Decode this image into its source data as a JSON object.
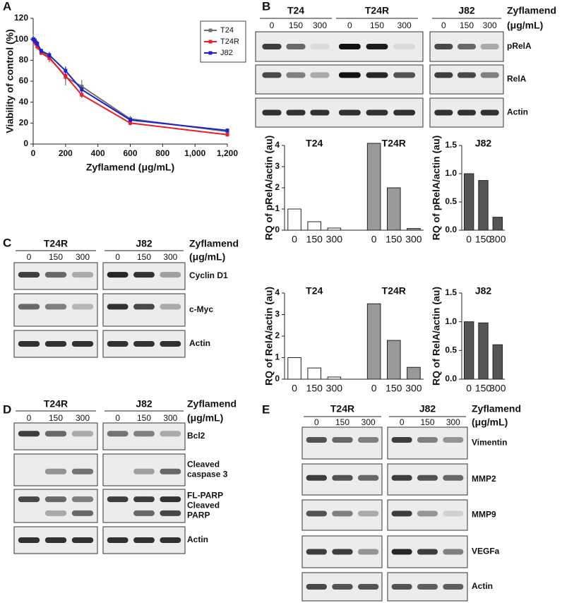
{
  "panel_labels": [
    "A",
    "B",
    "C",
    "D",
    "E"
  ],
  "chart_data": [
    {
      "type": "line",
      "xlabel": "Zyflamend (μg/mL)",
      "ylabel": "Viability of control (%)",
      "x": [
        0,
        10,
        25,
        50,
        100,
        200,
        300,
        600,
        1200
      ],
      "xlim": [
        0,
        1200
      ],
      "xticks": [
        0,
        200,
        400,
        600,
        800,
        {
          "value": 1000,
          "label": "1,000"
        },
        {
          "value": 1200,
          "label": "1,200"
        }
      ],
      "ylim": [
        0,
        120
      ],
      "yticks": [
        0,
        20,
        40,
        60,
        80,
        100,
        120
      ],
      "legend": "upper right",
      "series": [
        {
          "name": "T24",
          "color": "#707070",
          "values": [
            100,
            98,
            95,
            88,
            83,
            64,
            55,
            24,
            12
          ],
          "errors": [
            5,
            4,
            3,
            3,
            3,
            8,
            6,
            3,
            2
          ]
        },
        {
          "name": "T24R",
          "color": "#e8202a",
          "values": [
            100,
            97,
            93,
            87,
            82,
            65,
            47,
            20,
            9
          ],
          "errors": [
            3,
            3,
            3,
            2,
            4,
            4,
            3,
            2,
            2
          ]
        },
        {
          "name": "J82",
          "color": "#2020d0",
          "values": [
            100,
            99,
            96,
            89,
            85,
            70,
            52,
            23,
            13
          ],
          "errors": [
            3,
            3,
            3,
            2,
            3,
            4,
            3,
            2,
            2
          ]
        }
      ]
    },
    {
      "type": "bar",
      "ylabel": "RQ of pRelA/actin (au)",
      "categories": [
        "0",
        "150",
        "300",
        null,
        "0",
        "150",
        "300"
      ],
      "ylim": [
        0,
        4
      ],
      "yticks": [
        0,
        1,
        2,
        3,
        4
      ],
      "series": [
        {
          "name": "T24",
          "color": "#ffffff",
          "values": [
            1.0,
            0.4,
            0.1,
            null,
            null,
            null,
            null
          ]
        },
        {
          "name": "T24R",
          "color": "#999999",
          "values": [
            null,
            null,
            null,
            null,
            4.1,
            2.0,
            0.08
          ]
        }
      ]
    },
    {
      "type": "bar",
      "ylabel": "RQ of pRelA/actin (au)",
      "categories": [
        "0",
        "150",
        "300"
      ],
      "ylim": [
        0,
        1.5
      ],
      "yticks": [
        {
          "value": 0,
          "label": "0.0"
        },
        0.5,
        {
          "value": 1,
          "label": "1.0"
        },
        1.5
      ],
      "series": [
        {
          "name": "J82",
          "color": "#555555",
          "values": [
            1.0,
            0.88,
            0.23
          ]
        }
      ]
    },
    {
      "type": "bar",
      "ylabel": "RQ of RelA/actin (au)",
      "categories": [
        "0",
        "150",
        "300",
        null,
        "0",
        "150",
        "300"
      ],
      "ylim": [
        0,
        4
      ],
      "yticks": [
        0,
        1,
        2,
        3,
        4
      ],
      "series": [
        {
          "name": "T24",
          "color": "#ffffff",
          "values": [
            1.0,
            0.52,
            0.1,
            null,
            null,
            null,
            null
          ]
        },
        {
          "name": "T24R",
          "color": "#999999",
          "values": [
            null,
            null,
            null,
            null,
            3.5,
            1.8,
            0.55
          ]
        }
      ]
    },
    {
      "type": "bar",
      "ylabel": "RQ of RelA/actin (au)",
      "categories": [
        "0",
        "150",
        "300"
      ],
      "ylim": [
        0,
        1.5
      ],
      "yticks": [
        {
          "value": 0,
          "label": "0.0"
        },
        0.5,
        {
          "value": 1,
          "label": "1.0"
        },
        1.5
      ],
      "series": [
        {
          "name": "J82",
          "color": "#555555",
          "values": [
            1.0,
            0.98,
            0.6
          ]
        }
      ]
    }
  ],
  "blots": [
    {
      "treatment": "Zyflamend",
      "unit": "(μg/mL)",
      "groups": [
        {
          "name": "T24",
          "doses": [
            "0",
            "150",
            "300"
          ]
        },
        {
          "name": "T24R",
          "doses": [
            "0",
            "150",
            "300"
          ]
        },
        {
          "name": "J82",
          "doses": [
            "0",
            "150",
            "300"
          ]
        }
      ],
      "rows": [
        {
          "label": [
            "pRelA"
          ]
        },
        {
          "label": [
            "RelA"
          ]
        },
        {
          "label": [
            "Actin"
          ]
        }
      ]
    },
    {
      "treatment": "Zyflamend",
      "unit": "(μg/mL)",
      "groups": [
        {
          "name": "T24R",
          "doses": [
            "0",
            "150",
            "300"
          ]
        },
        {
          "name": "J82",
          "doses": [
            "0",
            "150",
            "300"
          ]
        }
      ],
      "rows": [
        {
          "label": [
            "Cyclin D1"
          ]
        },
        {
          "label": [
            "c-Myc"
          ]
        },
        {
          "label": [
            "Actin"
          ]
        }
      ]
    },
    {
      "treatment": "Zyflamend",
      "unit": "(μg/mL)",
      "groups": [
        {
          "name": "T24R",
          "doses": [
            "0",
            "150",
            "300"
          ]
        },
        {
          "name": "J82",
          "doses": [
            "0",
            "150",
            "300"
          ]
        }
      ],
      "rows": [
        {
          "label": [
            "Bcl2"
          ]
        },
        {
          "label": [
            "Cleaved",
            "caspase 3"
          ]
        },
        {
          "label": [
            "FL-PARP",
            "Cleaved",
            "PARP"
          ]
        },
        {
          "label": [
            "Actin"
          ]
        }
      ]
    },
    {
      "treatment": "Zyflamend",
      "unit": "(μg/mL)",
      "groups": [
        {
          "name": "T24R",
          "doses": [
            "0",
            "150",
            "300"
          ]
        },
        {
          "name": "J82",
          "doses": [
            "0",
            "150",
            "300"
          ]
        }
      ],
      "rows": [
        {
          "label": [
            "Vimentin"
          ]
        },
        {
          "label": [
            "MMP2"
          ]
        },
        {
          "label": [
            "MMP9"
          ]
        },
        {
          "label": [
            "VEGFa"
          ]
        },
        {
          "label": [
            "Actin"
          ]
        }
      ]
    }
  ]
}
